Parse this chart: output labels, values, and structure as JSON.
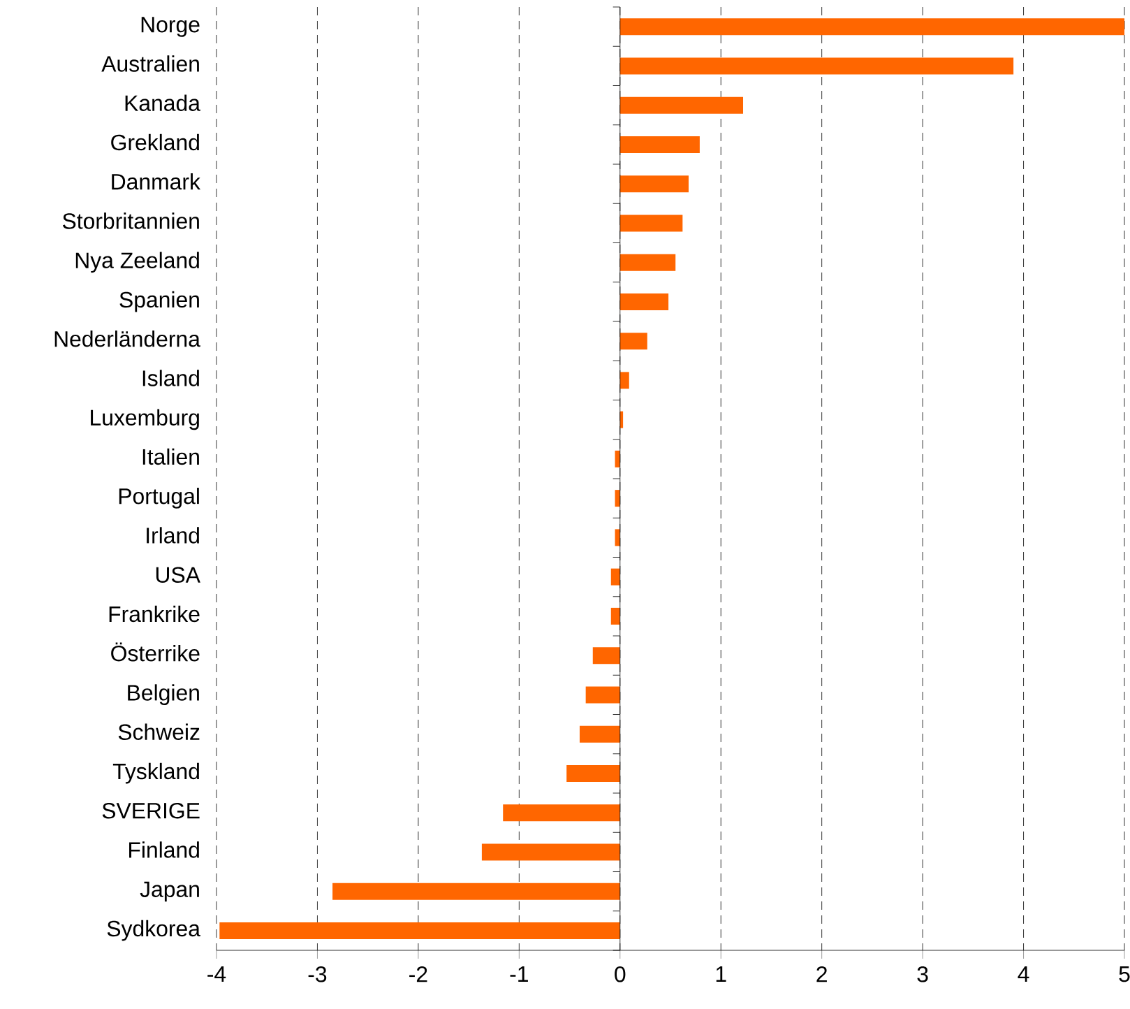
{
  "chart_data": {
    "type": "bar",
    "orientation": "horizontal",
    "categories": [
      "Norge",
      "Australien",
      "Kanada",
      "Grekland",
      "Danmark",
      "Storbritannien",
      "Nya Zeeland",
      "Spanien",
      "Nederländerna",
      "Island",
      "Luxemburg",
      "Italien",
      "Portugal",
      "Irland",
      "USA",
      "Frankrike",
      "Österrike",
      "Belgien",
      "Schweiz",
      "Tyskland",
      "SVERIGE",
      "Finland",
      "Japan",
      "Sydkorea"
    ],
    "values": [
      5.0,
      3.9,
      1.22,
      0.79,
      0.68,
      0.62,
      0.55,
      0.48,
      0.27,
      0.09,
      0.03,
      -0.05,
      -0.05,
      -0.05,
      -0.09,
      -0.09,
      -0.27,
      -0.34,
      -0.4,
      -0.53,
      -1.16,
      -1.37,
      -2.85,
      -3.97
    ],
    "color": "#ff6600",
    "xlim": [
      -4,
      5
    ],
    "xticks": [
      -4,
      -3,
      -2,
      -1,
      0,
      1,
      2,
      3,
      4,
      5
    ],
    "grid": "x"
  }
}
